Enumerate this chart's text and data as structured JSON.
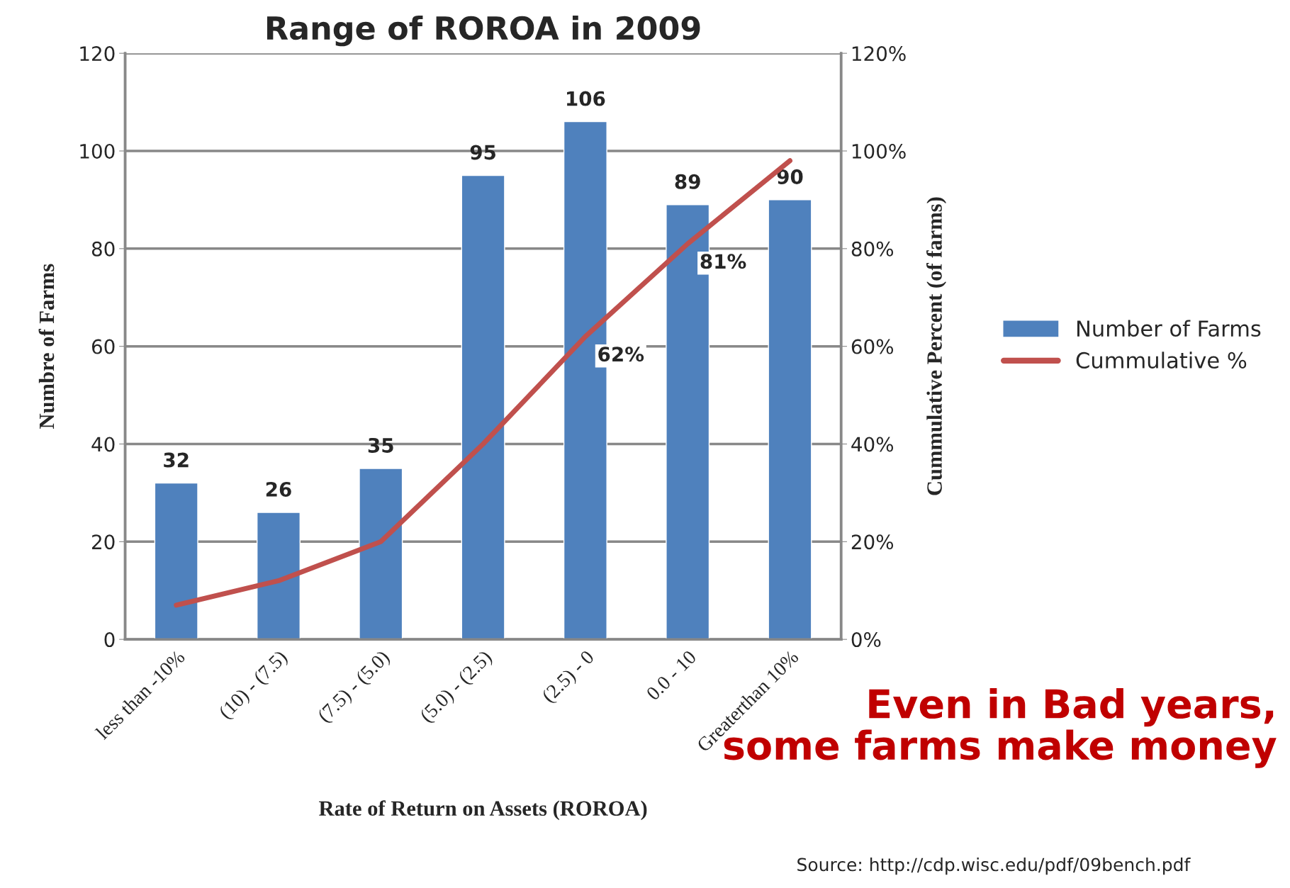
{
  "chart_data": {
    "type": "bar",
    "title": "Range of ROROA in 2009",
    "categories": [
      "less than -10%",
      "(10) - (7.5)",
      "(7.5) - (5.0)",
      "(5.0) - (2.5)",
      "(2.5) - 0",
      "0.0 - 10",
      "Greaterthan 10%"
    ],
    "xlabel": "Rate of Return on Assets (ROROA)",
    "ylabel": "Numbre of Farms",
    "y2label": "Cummulative Percent (of farms)",
    "series": [
      {
        "name": "Number of Farms",
        "color": "#4f81bd",
        "values": [
          32,
          26,
          35,
          95,
          106,
          89,
          90
        ],
        "data_labels": true
      },
      {
        "name": "Cummulative %",
        "type": "line",
        "axis": "y2",
        "color": "#c0504d",
        "values": [
          7,
          12,
          20,
          40,
          62,
          81,
          98
        ],
        "value_labels": [
          null,
          null,
          null,
          null,
          "62%",
          "81%",
          null
        ]
      }
    ],
    "ylim": [
      0,
      120
    ],
    "yticks": [
      0,
      20,
      40,
      60,
      80,
      100,
      120
    ],
    "y2lim": [
      0,
      120
    ],
    "y2ticks": [
      {
        "value": 0,
        "label": "0%"
      },
      {
        "value": 20,
        "label": "20%"
      },
      {
        "value": 40,
        "label": "40%"
      },
      {
        "value": 60,
        "label": "60%"
      },
      {
        "value": 80,
        "label": "80%"
      },
      {
        "value": 100,
        "label": "100%"
      },
      {
        "value": 120,
        "label": "120%"
      }
    ],
    "grid": "y",
    "legend": "right",
    "marker": "none",
    "line_style": "solid",
    "annotations": [
      "Even in Bad years,\nsome farms make money",
      "Source: http://cdp.wisc.edu/pdf/09bench.pdf"
    ]
  }
}
